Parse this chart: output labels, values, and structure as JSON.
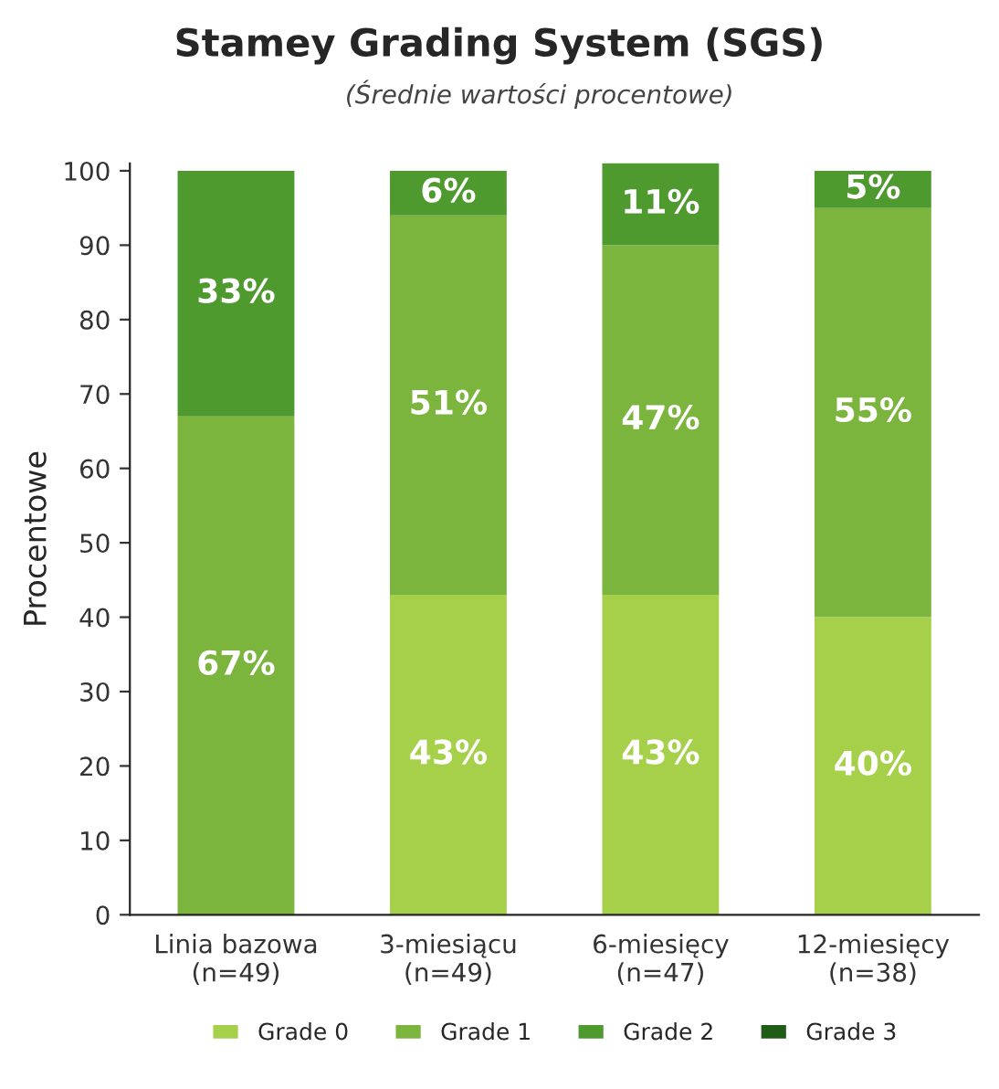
{
  "chart_data": {
    "type": "bar",
    "stacked": true,
    "title": "Stamey Grading System (SGS)",
    "subtitle": "(Średnie wartości procentowe)",
    "ylabel": "Procentowe",
    "categories": [
      "Linia bazowa\n(n=49)",
      "3-miesiącu\n(n=49)",
      "6-miesięcy\n(n=47)",
      "12-miesięcy\n(n=38)"
    ],
    "series": [
      {
        "name": "Grade 0",
        "color": "#a6d04a",
        "values": [
          0,
          43,
          43,
          40
        ],
        "value_labels": [
          null,
          "43%",
          "43%",
          "40%"
        ]
      },
      {
        "name": "Grade 1",
        "color": "#7cb53e",
        "values": [
          67,
          51,
          47,
          55
        ],
        "value_labels": [
          "67%",
          "51%",
          "47%",
          "55%"
        ]
      },
      {
        "name": "Grade 2",
        "color": "#4f9a2f",
        "values": [
          33,
          6,
          11,
          5
        ],
        "value_labels": [
          "33%",
          "6%",
          "11%",
          "5%"
        ]
      },
      {
        "name": "Grade 3",
        "color": "#1f5c16",
        "values": [
          0,
          0,
          0,
          0
        ],
        "value_labels": [
          null,
          null,
          null,
          null
        ]
      }
    ],
    "ylim": [
      0,
      101
    ],
    "yticks": [
      0,
      10,
      20,
      30,
      40,
      50,
      60,
      70,
      80,
      90,
      100
    ],
    "grid": false,
    "legend": "bottom"
  }
}
